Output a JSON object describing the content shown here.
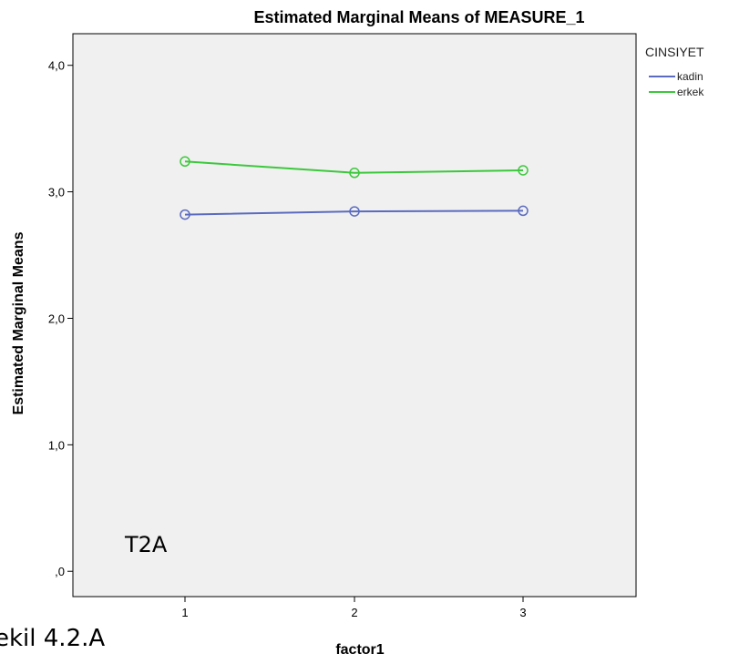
{
  "chart_data": {
    "type": "line",
    "title": "Estimated Marginal Means of MEASURE_1",
    "xlabel": "factor1",
    "ylabel": "Estimated Marginal Means",
    "categories": [
      "1",
      "2",
      "3"
    ],
    "y_ticks": [
      ",0",
      "1,0",
      "2,0",
      "3,0",
      "4,0"
    ],
    "ylim": [
      -0.2,
      4.25
    ],
    "grid": false,
    "legend_title": "CINSIYET",
    "legend_position": "top-right outside",
    "annotation": "T2A",
    "series": [
      {
        "name": "kadin",
        "color": "#5b6bbf",
        "values": [
          2.82,
          2.845,
          2.85
        ]
      },
      {
        "name": "erkek",
        "color": "#3cc83c",
        "values": [
          3.24,
          3.15,
          3.17
        ]
      }
    ],
    "plot_background": "#f0f0f0"
  },
  "caption": "ekil 4.2.A"
}
